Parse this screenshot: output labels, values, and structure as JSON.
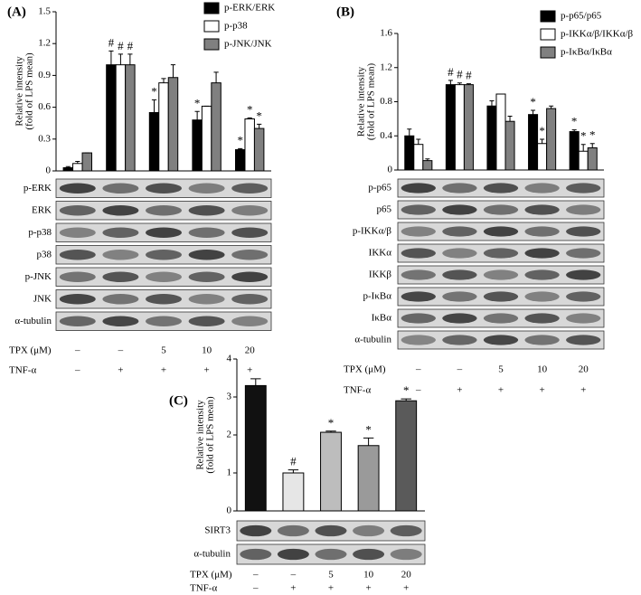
{
  "chart_data": [
    {
      "type": "bar",
      "panel_label": "(A)",
      "ylabel": [
        "Relative intensity",
        "(fold of LPS mean)"
      ],
      "ylim": [
        0,
        1.5
      ],
      "yticks": [
        0,
        0.3,
        0.6,
        0.9,
        1.2,
        1.5
      ],
      "series": [
        {
          "name": "p-ERK/ERK",
          "color": "#000000",
          "values": [
            0.03,
            1.0,
            0.55,
            0.48,
            0.2
          ],
          "errors": [
            0.01,
            0.13,
            0.12,
            0.08,
            0.01
          ],
          "annotations": [
            null,
            "#",
            "*",
            "*",
            "*"
          ]
        },
        {
          "name": "p-p38",
          "color": "#ffffff",
          "values": [
            0.07,
            1.0,
            0.83,
            0.61,
            0.49
          ],
          "errors": [
            0.02,
            0.1,
            0.04,
            0.0,
            0.01
          ],
          "annotations": [
            null,
            "#",
            null,
            null,
            "*"
          ]
        },
        {
          "name": "p-JNK/JNK",
          "color": "#808080",
          "values": [
            0.17,
            1.0,
            0.88,
            0.83,
            0.4
          ],
          "errors": [
            0.0,
            0.1,
            0.12,
            0.1,
            0.04
          ],
          "annotations": [
            null,
            "#",
            null,
            null,
            "*"
          ]
        }
      ],
      "blots": [
        "p-ERK",
        "ERK",
        "p-p38",
        "p38",
        "p-JNK",
        "JNK",
        "α-tubulin"
      ],
      "treatments": [
        {
          "label": "TPX (μM)",
          "values": [
            "–",
            "–",
            "5",
            "10",
            "20"
          ]
        },
        {
          "label": "TNF-α",
          "values": [
            "–",
            "+",
            "+",
            "+",
            "+"
          ]
        }
      ]
    },
    {
      "type": "bar",
      "panel_label": "(B)",
      "ylabel": [
        "Relative intensity",
        "(fold of LPS mean)"
      ],
      "ylim": [
        0,
        1.6
      ],
      "yticks": [
        0,
        0.4,
        0.8,
        1.2,
        1.6
      ],
      "series": [
        {
          "name": "p-p65/p65",
          "color": "#000000",
          "values": [
            0.4,
            1.0,
            0.75,
            0.65,
            0.45
          ],
          "errors": [
            0.08,
            0.05,
            0.06,
            0.05,
            0.02
          ],
          "annotations": [
            null,
            "#",
            null,
            "*",
            "*"
          ]
        },
        {
          "name": "p-IKKα/β/IKKα/β",
          "color": "#ffffff",
          "values": [
            0.3,
            1.0,
            0.89,
            0.31,
            0.22
          ],
          "errors": [
            0.06,
            0.02,
            0.0,
            0.05,
            0.08
          ],
          "annotations": [
            null,
            "#",
            null,
            "*",
            "*"
          ]
        },
        {
          "name": "p-IκBα/IκBα",
          "color": "#808080",
          "values": [
            0.11,
            1.0,
            0.57,
            0.72,
            0.26
          ],
          "errors": [
            0.02,
            0.01,
            0.06,
            0.03,
            0.05
          ],
          "annotations": [
            null,
            "#",
            null,
            null,
            "*"
          ]
        }
      ],
      "blots": [
        "p-p65",
        "p65",
        "p-IKKα/β",
        "IKKα",
        "IKKβ",
        "p-IκBα",
        "IκBα",
        "α-tubulin"
      ],
      "treatments": [
        {
          "label": "TPX (μM)",
          "values": [
            "–",
            "–",
            "5",
            "10",
            "20"
          ]
        },
        {
          "label": "TNF-α",
          "values": [
            "–",
            "+",
            "+",
            "+",
            "+"
          ]
        }
      ]
    },
    {
      "type": "bar",
      "panel_label": "(C)",
      "ylabel": [
        "Relative intensity",
        "(fold of LPS mean)"
      ],
      "ylim": [
        0,
        4
      ],
      "yticks": [
        0,
        1,
        2,
        3,
        4
      ],
      "values": [
        3.3,
        1.0,
        2.07,
        1.72,
        2.9
      ],
      "errors": [
        0.18,
        0.08,
        0.03,
        0.2,
        0.05
      ],
      "annotations": [
        null,
        "#",
        "*",
        "*",
        "*"
      ],
      "colors": [
        "#111111",
        "#e6e6e6",
        "#bdbdbd",
        "#9a9a9a",
        "#5a5a5a"
      ],
      "blots": [
        "SIRT3",
        "α-tubulin"
      ],
      "treatments": [
        {
          "label": "TPX (μM)",
          "values": [
            "–",
            "–",
            "5",
            "10",
            "20"
          ]
        },
        {
          "label": "TNF-α",
          "values": [
            "–",
            "+",
            "+",
            "+",
            "+"
          ]
        }
      ]
    }
  ]
}
